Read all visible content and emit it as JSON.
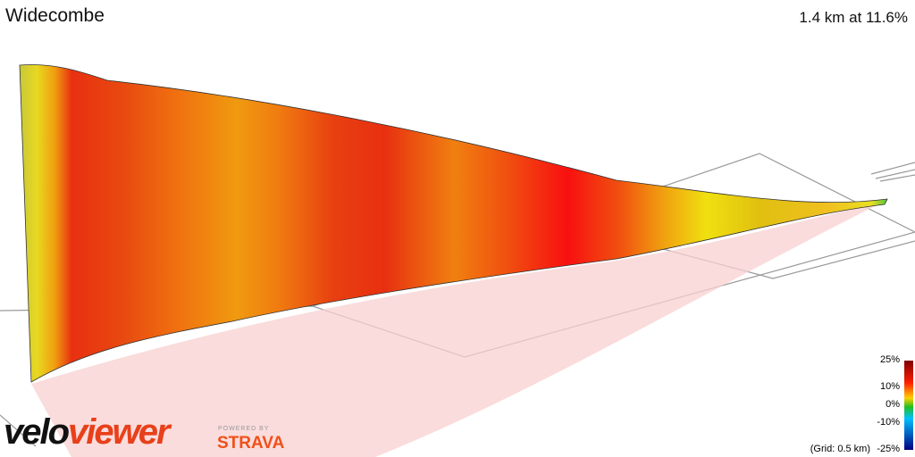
{
  "title": "Widecombe",
  "summary": "1.4 km at 11.6%",
  "legend": {
    "labels": [
      "25%",
      "10%",
      "0%",
      "-10%",
      "-25%"
    ]
  },
  "grid_note": "(Grid: 0.5 km)",
  "logo": {
    "brand_a": "velo",
    "brand_b": "viewer",
    "powered": "POWERED BY",
    "strava": "STRAVA"
  }
}
